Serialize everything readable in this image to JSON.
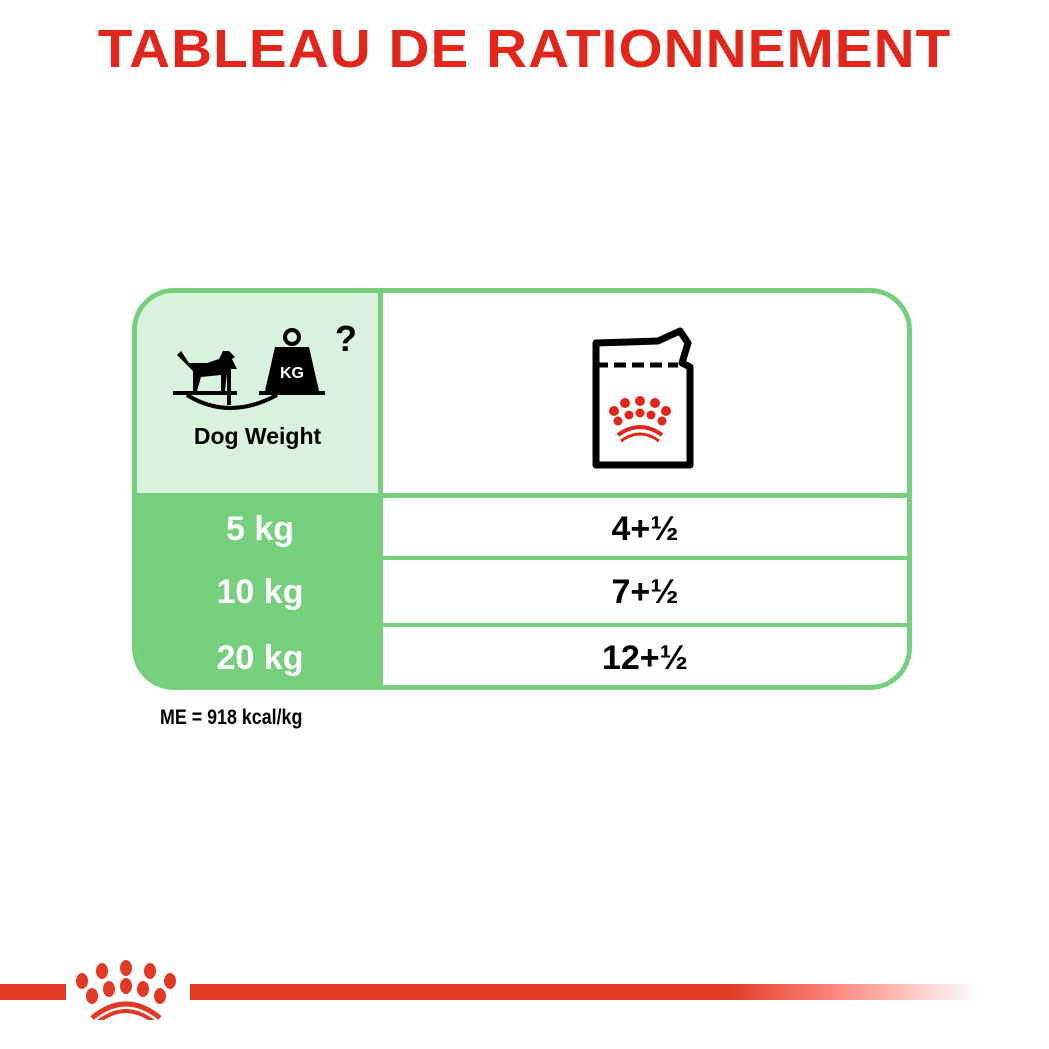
{
  "title": "TABLEAU DE RATIONNEMENT",
  "table": {
    "header_label": "Dog Weight",
    "header_icon": "dog-weight-scale-icon",
    "product_icon": "wet-food-pouch-icon",
    "rows": [
      {
        "weight": "5 kg",
        "amount": "4+½"
      },
      {
        "weight": "10 kg",
        "amount": "7+½"
      },
      {
        "weight": "20 kg",
        "amount": "12+½"
      }
    ]
  },
  "footnote": "ME = 918 kcal/kg",
  "colors": {
    "brand_red": "#e1261c",
    "green": "#76cf7c",
    "light_green": "#d9f2dd"
  }
}
